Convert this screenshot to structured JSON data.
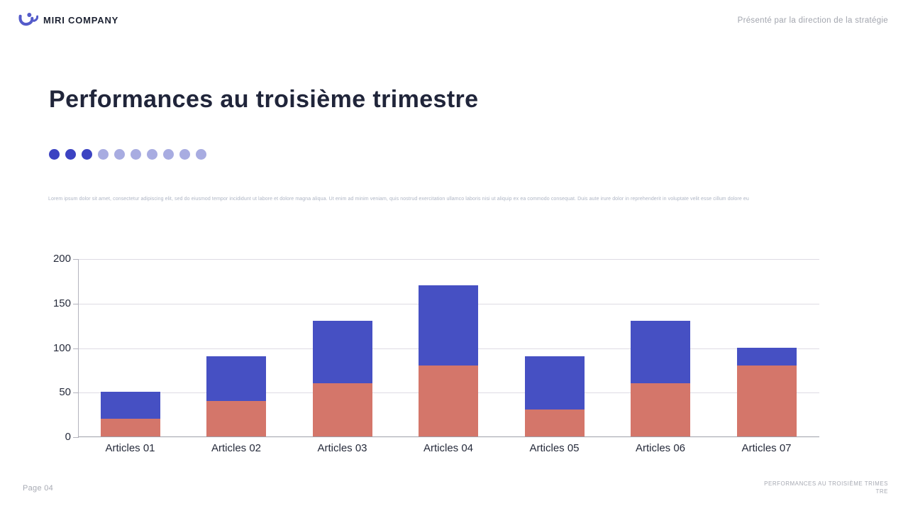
{
  "header": {
    "logo_text": "MIRI COMPANY",
    "presenter": "Présenté par la direction de la stratégie"
  },
  "title": "Performances au troisième trimestre",
  "progress_dots": {
    "total": 10,
    "active": 3,
    "active_color": "#3c43c2",
    "inactive_color": "#a8ace1"
  },
  "paragraph": "Lorem ipsum dolor sit amet, consectetur adipiscing elit, sed do eiusmod tempor incididunt ut labore et dolore magna aliqua. Ut enim ad minim veniam, quis nostrud exercitation ullamco laboris nisi ut aliquip ex ea commodo consequat. Duis aute irure dolor in reprehenderit in voluptate velit esse cillum dolore eu",
  "chart_data": {
    "type": "bar",
    "stacked": true,
    "categories": [
      "Articles 01",
      "Articles 02",
      "Articles 03",
      "Articles 04",
      "Articles 05",
      "Articles 06",
      "Articles 07"
    ],
    "series": [
      {
        "name": "orange",
        "color": "#d4766a",
        "values": [
          20,
          40,
          60,
          80,
          30,
          60,
          80
        ]
      },
      {
        "name": "blue",
        "color": "#4650c3",
        "values": [
          30,
          50,
          70,
          90,
          60,
          70,
          20
        ]
      }
    ],
    "totals": [
      50,
      90,
      130,
      170,
      90,
      130,
      100
    ],
    "title": "",
    "xlabel": "",
    "ylabel": "",
    "ylim": [
      0,
      200
    ],
    "yticks": [
      0,
      50,
      100,
      150,
      200
    ],
    "grid": true,
    "legend": "none"
  },
  "footer": {
    "page": "Page 04",
    "slide_title": "PERFORMANCES AU TROISIÈME TRIMESTRE"
  },
  "colors": {
    "accent": "#3c43c2",
    "bar_blue": "#4650c3",
    "bar_orange": "#d4766a",
    "dark_text": "#20253a",
    "muted_text": "#a7aab3"
  }
}
